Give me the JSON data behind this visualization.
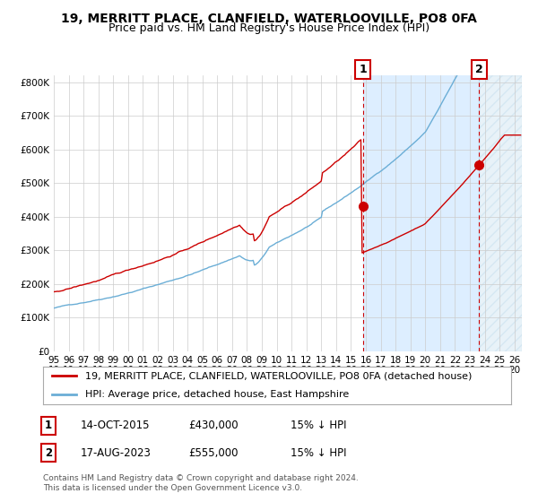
{
  "title1": "19, MERRITT PLACE, CLANFIELD, WATERLOOVILLE, PO8 0FA",
  "title2": "Price paid vs. HM Land Registry's House Price Index (HPI)",
  "ylabel_ticks": [
    "£0",
    "£100K",
    "£200K",
    "£300K",
    "£400K",
    "£500K",
    "£600K",
    "£700K",
    "£800K"
  ],
  "ytick_vals": [
    0,
    100000,
    200000,
    300000,
    400000,
    500000,
    600000,
    700000,
    800000
  ],
  "ylim": [
    0,
    820000
  ],
  "xlim_start": 1995.0,
  "xlim_end": 2026.5,
  "years_ticks": [
    1995,
    1996,
    1997,
    1998,
    1999,
    2000,
    2001,
    2002,
    2003,
    2004,
    2005,
    2006,
    2007,
    2008,
    2009,
    2010,
    2011,
    2012,
    2013,
    2014,
    2015,
    2016,
    2017,
    2018,
    2019,
    2020,
    2021,
    2022,
    2023,
    2024,
    2025,
    2026
  ],
  "hpi_color": "#6baed6",
  "price_color": "#cc0000",
  "bg_color": "#ffffff",
  "chart_bg": "#ffffff",
  "highlight_bg": "#ddeeff",
  "grid_color": "#cccccc",
  "point1_x": 2015.79,
  "point1_y": 430000,
  "point2_x": 2023.63,
  "point2_y": 555000,
  "vline1_x": 2015.79,
  "vline2_x": 2023.63,
  "legend_label1": "19, MERRITT PLACE, CLANFIELD, WATERLOOVILLE, PO8 0FA (detached house)",
  "legend_label2": "HPI: Average price, detached house, East Hampshire",
  "ann1_label": "1",
  "ann2_label": "2",
  "table_row1": [
    "1",
    "14-OCT-2015",
    "£430,000",
    "15% ↓ HPI"
  ],
  "table_row2": [
    "2",
    "17-AUG-2023",
    "£555,000",
    "15% ↓ HPI"
  ],
  "footnote": "Contains HM Land Registry data © Crown copyright and database right 2024.\nThis data is licensed under the Open Government Licence v3.0.",
  "title_fontsize": 10,
  "subtitle_fontsize": 9,
  "tick_fontsize": 7.5,
  "legend_fontsize": 8,
  "table_fontsize": 8.5
}
